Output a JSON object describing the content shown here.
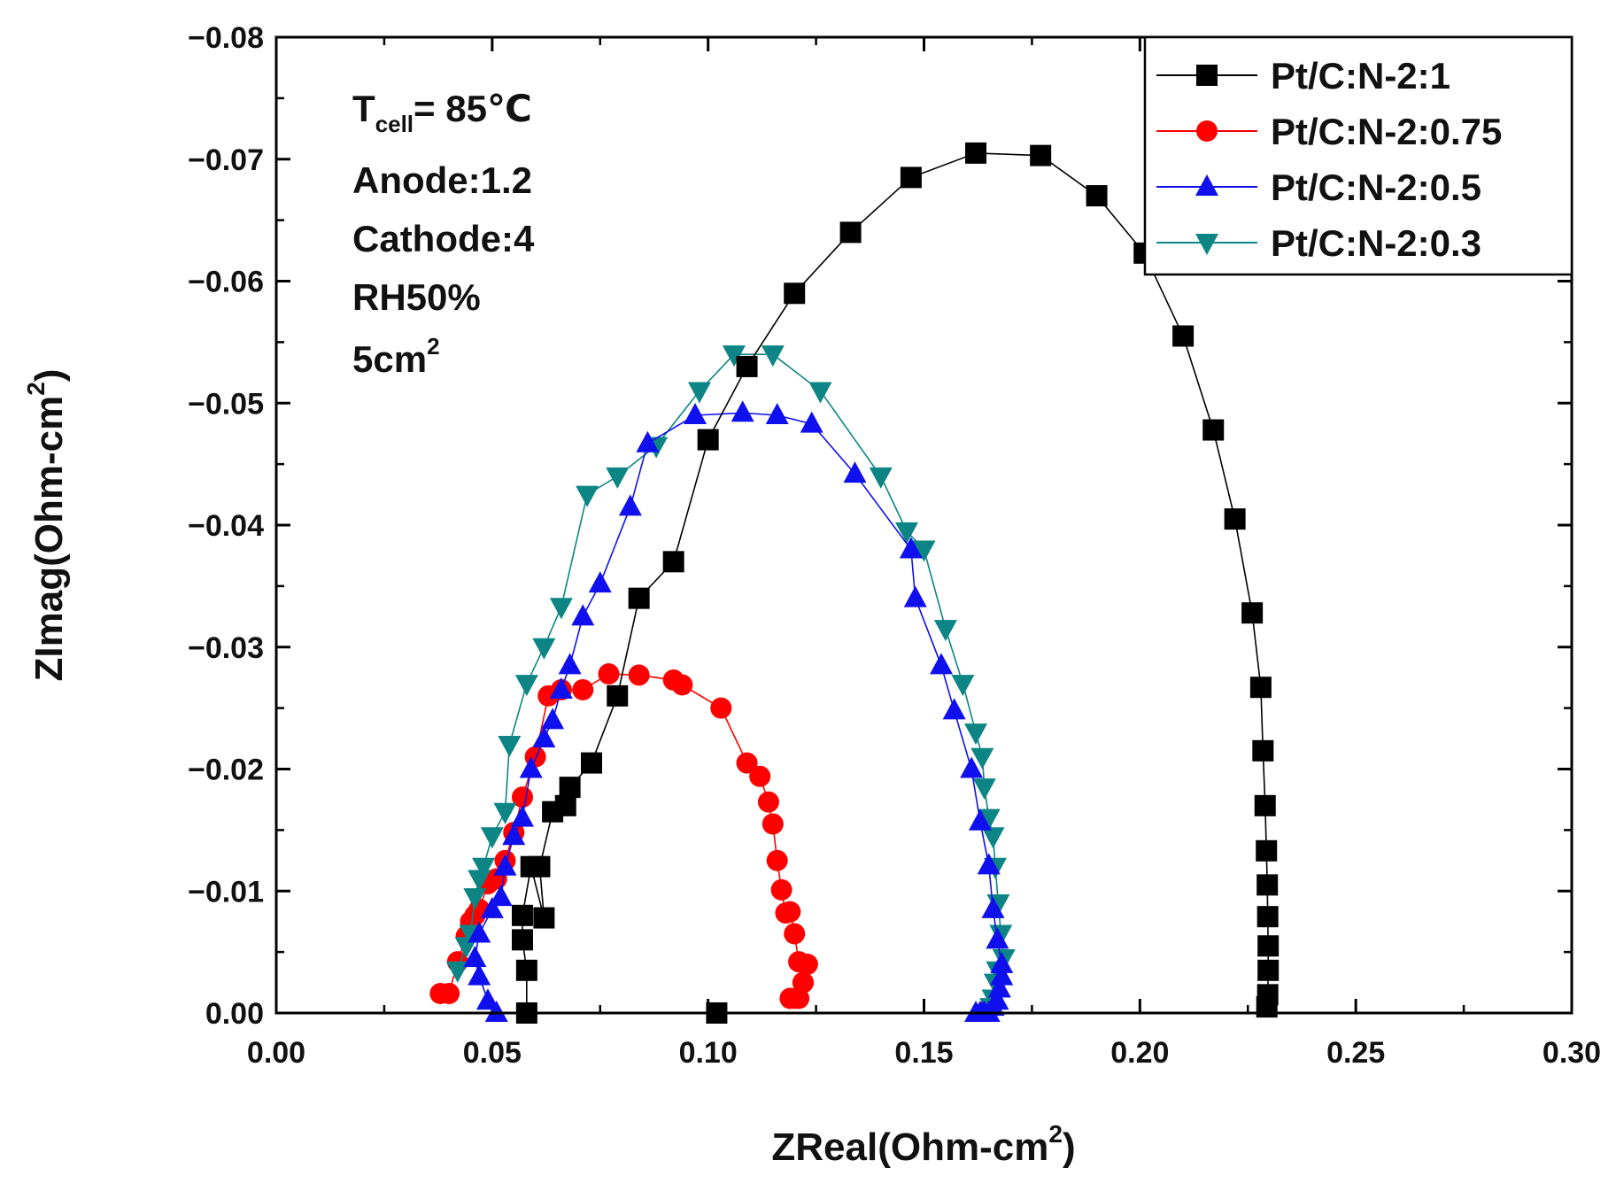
{
  "chart_data": {
    "type": "scatter",
    "title": "",
    "xlabel": {
      "main": "ZReal(Ohm-cm",
      "sup": "2",
      "end": ")"
    },
    "ylabel": {
      "main": "ZImag(Ohm-cm",
      "sup": "2",
      "end": ")"
    },
    "xlim": [
      0.0,
      0.3
    ],
    "ylim": [
      0.0,
      -0.08
    ],
    "x_ticks": [
      0.0,
      0.05,
      0.1,
      0.15,
      0.2,
      0.25,
      0.3
    ],
    "x_tick_labels": [
      "0.00",
      "0.05",
      "0.10",
      "0.15",
      "0.20",
      "0.25",
      "0.30"
    ],
    "y_ticks": [
      0.0,
      -0.01,
      -0.02,
      -0.03,
      -0.04,
      -0.05,
      -0.06,
      -0.07,
      -0.08
    ],
    "y_tick_labels": [
      "0.00",
      "−0.01",
      "−0.02",
      "−0.03",
      "−0.04",
      "−0.05",
      "−0.06",
      "−0.07",
      "−0.08"
    ],
    "annotation": {
      "tcell": {
        "main": "T",
        "sub": "cell",
        "rest": "= 85℃"
      },
      "lines": [
        "Anode:1.2",
        "Cathode:4",
        "RH50%"
      ],
      "area": {
        "main": "5cm",
        "sup": "2"
      }
    },
    "legend_position": "top-right",
    "series": [
      {
        "name": "Pt/C:N-2:1",
        "color": "#000000",
        "marker": "square",
        "x": [
          0.102,
          0.058,
          0.058,
          0.057,
          0.057,
          0.059,
          0.062,
          0.061,
          0.064,
          0.067,
          0.068,
          0.073,
          0.079,
          0.084,
          0.092,
          0.1,
          0.109,
          0.12,
          0.133,
          0.147,
          0.162,
          0.177,
          0.19,
          0.201,
          0.21,
          0.217,
          0.222,
          0.226,
          0.228,
          0.2285,
          0.229,
          0.2293,
          0.2295,
          0.2296,
          0.2297,
          0.2297,
          0.2296,
          0.2294
        ],
        "y": [
          0.0,
          0.0,
          -0.0035,
          -0.006,
          -0.008,
          -0.012,
          -0.0078,
          -0.012,
          -0.0165,
          -0.017,
          -0.0185,
          -0.0205,
          -0.026,
          -0.034,
          -0.037,
          -0.047,
          -0.053,
          -0.059,
          -0.064,
          -0.0685,
          -0.0705,
          -0.0703,
          -0.067,
          -0.0623,
          -0.0555,
          -0.0478,
          -0.0405,
          -0.0328,
          -0.0267,
          -0.0215,
          -0.017,
          -0.0133,
          -0.0105,
          -0.0079,
          -0.0055,
          -0.0035,
          -0.0015,
          -0.0005
        ]
      },
      {
        "name": "Pt/C:N-2:0.75",
        "color": "#ff0000",
        "marker": "circle",
        "x": [
          0.038,
          0.04,
          0.042,
          0.044,
          0.045,
          0.046,
          0.047,
          0.049,
          0.051,
          0.053,
          0.055,
          0.057,
          0.06,
          0.063,
          0.066,
          0.071,
          0.077,
          0.084,
          0.092,
          0.094,
          0.103,
          0.109,
          0.112,
          0.114,
          0.115,
          0.116,
          0.117,
          0.118,
          0.119,
          0.12,
          0.121,
          0.122,
          0.123,
          0.122,
          0.121,
          0.12,
          0.119
        ],
        "y": [
          -0.0016,
          -0.0016,
          -0.0042,
          -0.0063,
          -0.0075,
          -0.008,
          -0.0085,
          -0.0106,
          -0.011,
          -0.0125,
          -0.0148,
          -0.0177,
          -0.021,
          -0.026,
          -0.0265,
          -0.0265,
          -0.0278,
          -0.0277,
          -0.0273,
          -0.0269,
          -0.025,
          -0.0205,
          -0.0194,
          -0.0173,
          -0.0155,
          -0.0125,
          -0.0101,
          -0.0082,
          -0.0083,
          -0.0065,
          -0.0042,
          -0.0025,
          -0.004,
          -0.0025,
          -0.0012,
          -0.0012,
          -0.0012
        ]
      },
      {
        "name": "Pt/C:N-2:0.5",
        "color": "#1010ee",
        "marker": "triangle-up",
        "x": [
          0.051,
          0.049,
          0.047,
          0.046,
          0.047,
          0.05,
          0.052,
          0.053,
          0.055,
          0.057,
          0.059,
          0.062,
          0.064,
          0.066,
          0.068,
          0.071,
          0.075,
          0.082,
          0.086,
          0.097,
          0.108,
          0.116,
          0.124,
          0.134,
          0.147,
          0.148,
          0.154,
          0.157,
          0.161,
          0.163,
          0.165,
          0.166,
          0.167,
          0.168,
          0.168,
          0.1675,
          0.167,
          0.166,
          0.165,
          0.164,
          0.1635,
          0.163,
          0.162
        ],
        "y": [
          0.0,
          -0.001,
          -0.003,
          -0.0045,
          -0.0065,
          -0.0085,
          -0.0095,
          -0.012,
          -0.0145,
          -0.016,
          -0.02,
          -0.0225,
          -0.024,
          -0.0265,
          -0.0285,
          -0.0325,
          -0.0352,
          -0.0415,
          -0.0467,
          -0.049,
          -0.0492,
          -0.049,
          -0.0483,
          -0.0442,
          -0.038,
          -0.034,
          -0.0285,
          -0.0248,
          -0.02,
          -0.0157,
          -0.0121,
          -0.0085,
          -0.006,
          -0.004,
          -0.003,
          -0.002,
          -0.001,
          -0.0005,
          0.0,
          0.0,
          0.0,
          0.0,
          0.0
        ]
      },
      {
        "name": "Pt/C:N-2:0.3",
        "color": "#0d8585",
        "marker": "triangle-down",
        "x": [
          0.042,
          0.044,
          0.045,
          0.046,
          0.047,
          0.048,
          0.05,
          0.053,
          0.054,
          0.058,
          0.062,
          0.066,
          0.072,
          0.079,
          0.088,
          0.098,
          0.106,
          0.115,
          0.126,
          0.14,
          0.146,
          0.15,
          0.155,
          0.159,
          0.162,
          0.1635,
          0.164,
          0.165,
          0.166,
          0.1665,
          0.1672,
          0.1678,
          0.1685,
          0.167,
          0.1665,
          0.166,
          0.1655
        ],
        "y": [
          -0.0035,
          -0.0055,
          -0.0065,
          -0.0095,
          -0.011,
          -0.012,
          -0.0145,
          -0.0165,
          -0.022,
          -0.027,
          -0.03,
          -0.0333,
          -0.0425,
          -0.044,
          -0.0465,
          -0.051,
          -0.054,
          -0.054,
          -0.051,
          -0.044,
          -0.0395,
          -0.038,
          -0.0315,
          -0.027,
          -0.023,
          -0.021,
          -0.0185,
          -0.016,
          -0.0145,
          -0.012,
          -0.009,
          -0.0065,
          -0.0045,
          -0.0035,
          -0.0025,
          -0.0012,
          -0.0005
        ]
      }
    ]
  }
}
